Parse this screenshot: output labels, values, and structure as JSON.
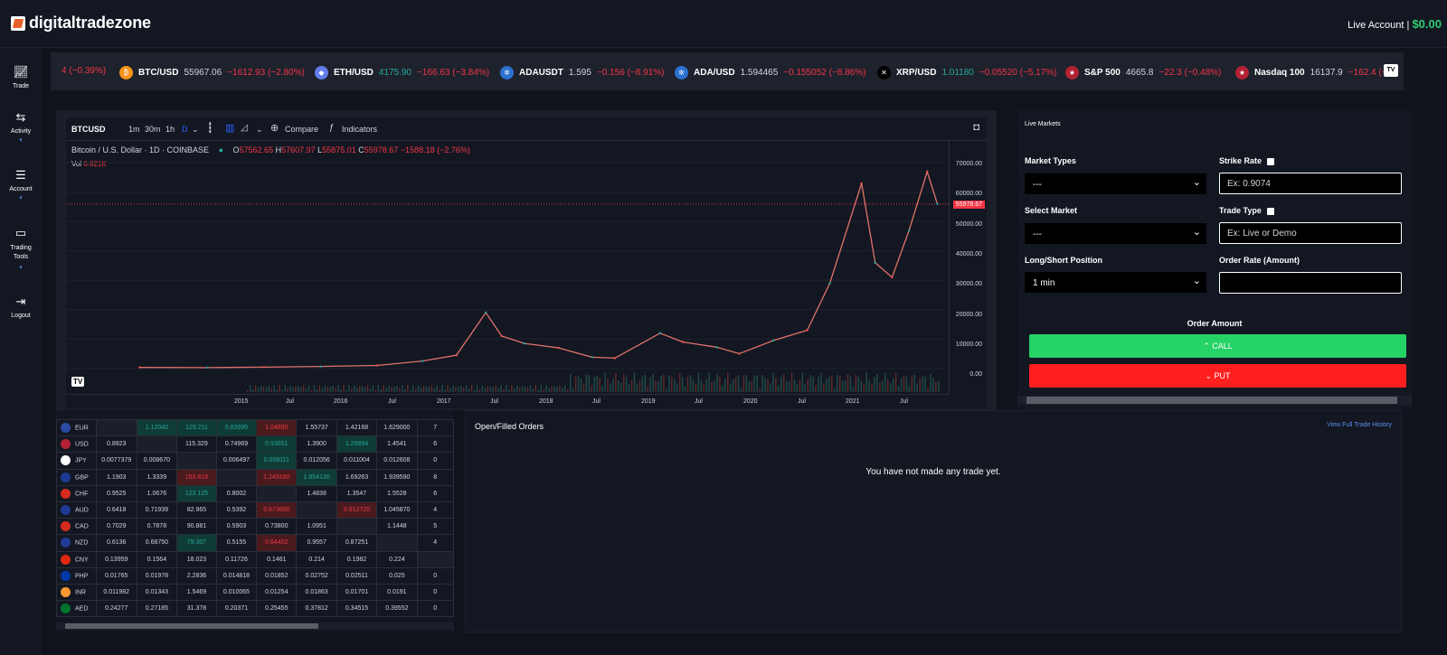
{
  "brand": {
    "name": "digitaltradezone"
  },
  "account": {
    "label": "Live Account |",
    "balance": "$0.00"
  },
  "nav": [
    {
      "label": "Trade",
      "icon": "chart-line-icon"
    },
    {
      "label": "Activity",
      "icon": "activity-icon",
      "dropdown": true
    },
    {
      "label": "Account",
      "icon": "database-icon",
      "dropdown": true
    },
    {
      "label": "Trading Tools",
      "icon": "monitor-icon",
      "dropdown": true
    },
    {
      "label": "Logout",
      "icon": "logout-icon"
    }
  ],
  "ticker": [
    {
      "sym": "",
      "price": "",
      "change": "4 (−0.39%)",
      "icon": ""
    },
    {
      "sym": "BTC/USD",
      "price": "55967.06",
      "change": "−1612.93 (−2.80%)",
      "icon": "bitcoin-icon",
      "color": "#f7931a"
    },
    {
      "sym": "ETH/USD",
      "price": "4175.90",
      "change": "−166.63 (−3.84%)",
      "icon": "ethereum-icon",
      "color": "#627eea"
    },
    {
      "sym": "ADAUSDT",
      "price": "1.595",
      "change": "−0.156 (−8.91%)",
      "icon": "cardano-icon",
      "color": "#2a71d0"
    },
    {
      "sym": "ADA/USD",
      "price": "1.594465",
      "change": "−0.155052 (−8.86%)",
      "icon": "cardano-icon",
      "color": "#2a71d0"
    },
    {
      "sym": "XRP/USD",
      "price": "1.01180",
      "change": "−0.05520 (−5.17%)",
      "icon": "xrp-icon",
      "color": "#000000"
    },
    {
      "sym": "S&P 500",
      "price": "4665.8",
      "change": "−22.3 (−0.48%)",
      "icon": "us-flag-icon",
      "color": "#b22234"
    },
    {
      "sym": "Nasdaq 100",
      "price": "16137.9",
      "change": "−162.4 (−1",
      "icon": "us-flag-icon",
      "color": "#b22234"
    }
  ],
  "chart": {
    "symbol": "BTCUSD",
    "intervals": [
      "1m",
      "30m",
      "1h",
      "D"
    ],
    "compare": "Compare",
    "indicators": "Indicators",
    "title": "Bitcoin / U.S. Dollar · 1D · COINBASE",
    "ohlc": {
      "o": "57562.65",
      "h": "57607.97",
      "l": "55875.01",
      "c": "55978.67",
      "chg": "−1588.18 (−2.76%)"
    },
    "vol_label": "Vol",
    "vol": "6.821K",
    "last_price": "55978.67",
    "y_ticks": [
      "70000.00",
      "60000.00",
      "50000.00",
      "40000.00",
      "30000.00",
      "20000.00",
      "10000.00",
      "0.00"
    ],
    "x_ticks": [
      "2015",
      "Jul",
      "2016",
      "Jul",
      "2017",
      "Jul",
      "2018",
      "Jul",
      "2019",
      "Jul",
      "2020",
      "Jul",
      "2021",
      "Jul"
    ]
  },
  "chart_data": {
    "type": "line",
    "title": "Bitcoin / U.S. Dollar · 1D · COINBASE",
    "x": [
      2014.9,
      2015.5,
      2016.0,
      2016.5,
      2017.0,
      2017.4,
      2017.7,
      2017.96,
      2018.1,
      2018.3,
      2018.6,
      2018.9,
      2019.1,
      2019.5,
      2019.7,
      2020.0,
      2020.2,
      2020.5,
      2020.8,
      2021.0,
      2021.28,
      2021.4,
      2021.55,
      2021.7,
      2021.86,
      2021.95
    ],
    "y": [
      330,
      260,
      430,
      650,
      1000,
      2500,
      4500,
      19000,
      11000,
      8500,
      7000,
      3800,
      3500,
      12000,
      9000,
      7200,
      5000,
      9500,
      13000,
      29000,
      63000,
      36000,
      31000,
      47000,
      67000,
      55978
    ],
    "ylim": [
      -5000,
      75000
    ],
    "xlabel": "",
    "ylabel": ""
  },
  "fx": {
    "rows": [
      {
        "cur": "EUR",
        "color": "#2b4ba0",
        "cells": [
          "",
          "1.12040",
          "129.211",
          "0.83995",
          "1.04890",
          "1.55737",
          "1.42168",
          "1.629000",
          "7"
        ],
        "cls": [
          "e",
          "g",
          "g",
          "g",
          "r",
          "",
          "",
          "",
          ""
        ]
      },
      {
        "cur": "USD",
        "color": "#b22234",
        "cells": [
          "0.8923",
          "",
          "115.329",
          "0.74969",
          "0.93651",
          "1.3900",
          "1.26894",
          "1.4541",
          "6"
        ],
        "cls": [
          "",
          "e",
          "",
          "",
          "g",
          "",
          "g",
          "",
          ""
        ]
      },
      {
        "cur": "JPY",
        "color": "#ffffff",
        "cells": [
          "0.0077379",
          "0.008670",
          "",
          "0.006497",
          "0.008111",
          "0.012056",
          "0.011004",
          "0.012608",
          "0"
        ],
        "cls": [
          "",
          "",
          "e",
          "",
          "g",
          "",
          "",
          "",
          ""
        ]
      },
      {
        "cur": "GBP",
        "color": "#1f3a93",
        "cells": [
          "1.1903",
          "1.3339",
          "153.819",
          "",
          "1.249160",
          "1.854130",
          "1.69263",
          "1.939590",
          "8"
        ],
        "cls": [
          "",
          "",
          "r",
          "e",
          "r",
          "g",
          "",
          "",
          ""
        ]
      },
      {
        "cur": "CHF",
        "color": "#d52b1e",
        "cells": [
          "0.9525",
          "1.0676",
          "123.125",
          "0.8002",
          "",
          "1.4838",
          "1.3547",
          "1.5528",
          "6"
        ],
        "cls": [
          "",
          "",
          "g",
          "",
          "e",
          "",
          "",
          "",
          ""
        ]
      },
      {
        "cur": "AUD",
        "color": "#1f3a93",
        "cells": [
          "0.6418",
          "0.71939",
          "82.965",
          "0.5392",
          "0.673600",
          "",
          "0.912720",
          "1.045870",
          "4"
        ],
        "cls": [
          "",
          "",
          "",
          "",
          "r",
          "e",
          "r",
          "",
          ""
        ]
      },
      {
        "cur": "CAD",
        "color": "#d52b1e",
        "cells": [
          "0.7029",
          "0.7878",
          "90.881",
          "0.5903",
          "0.73800",
          "1.0951",
          "",
          "1.1448",
          "5"
        ],
        "cls": [
          "",
          "",
          "",
          "",
          "",
          "",
          "e",
          "",
          ""
        ]
      },
      {
        "cur": "NZD",
        "color": "#1f3a93",
        "cells": [
          "0.6136",
          "0.68750",
          "79.307",
          "0.5155",
          "0.64402",
          "0.9557",
          "0.87251",
          "",
          "4"
        ],
        "cls": [
          "",
          "",
          "g",
          "",
          "r",
          "",
          "",
          "e",
          ""
        ]
      },
      {
        "cur": "CNY",
        "color": "#de2910",
        "cells": [
          "0.13959",
          "0.1564",
          "18.023",
          "0.11726",
          "0.1461",
          "0.214",
          "0.1982",
          "0.224",
          ""
        ],
        "cls": [
          "",
          "",
          "",
          "",
          "",
          "",
          "",
          "",
          "e"
        ]
      },
      {
        "cur": "PHP",
        "color": "#0038a8",
        "cells": [
          "0.01765",
          "0.01978",
          "2.2836",
          "0.014818",
          "0.01852",
          "0.02752",
          "0.02511",
          "0.025",
          "0"
        ],
        "cls": [
          "",
          "",
          "",
          "",
          "",
          "",
          "",
          "",
          ""
        ]
      },
      {
        "cur": "INR",
        "color": "#ff9933",
        "cells": [
          "0.011982",
          "0.01343",
          "1.5469",
          "0.010065",
          "0.01254",
          "0.01863",
          "0.01701",
          "0.0191",
          "0"
        ],
        "cls": [
          "",
          "",
          "",
          "",
          "",
          "",
          "",
          "",
          ""
        ]
      },
      {
        "cur": "AED",
        "color": "#00732f",
        "cells": [
          "0.24277",
          "0.27185",
          "31.378",
          "0.20371",
          "0.25455",
          "0.37812",
          "0.34515",
          "0.39552",
          "0"
        ],
        "cls": [
          "",
          "",
          "",
          "",
          "",
          "",
          "",
          "",
          ""
        ]
      }
    ]
  },
  "orders": {
    "title": "Open/Filled Orders",
    "history_link": "View Full Trade History",
    "empty": "You have not made any trade yet."
  },
  "panel": {
    "title": "Live Markets",
    "market_types_label": "Market Types",
    "market_types_value": "---",
    "strike_rate_label": "Strike Rate",
    "strike_rate_placeholder": "Ex: 0.9074",
    "select_market_label": "Select Market",
    "select_market_value": "---",
    "trade_type_label": "Trade Type",
    "trade_type_placeholder": "Ex: Live or Demo",
    "position_label": "Long/Short Position",
    "position_value": "1 min",
    "order_rate_label": "Order Rate (Amount)",
    "order_rate_value": "",
    "order_amount_label": "Order Amount",
    "call_label": "CALL",
    "put_label": "PUT",
    "call_color": "#25d366",
    "put_color": "#ff1f1f"
  }
}
